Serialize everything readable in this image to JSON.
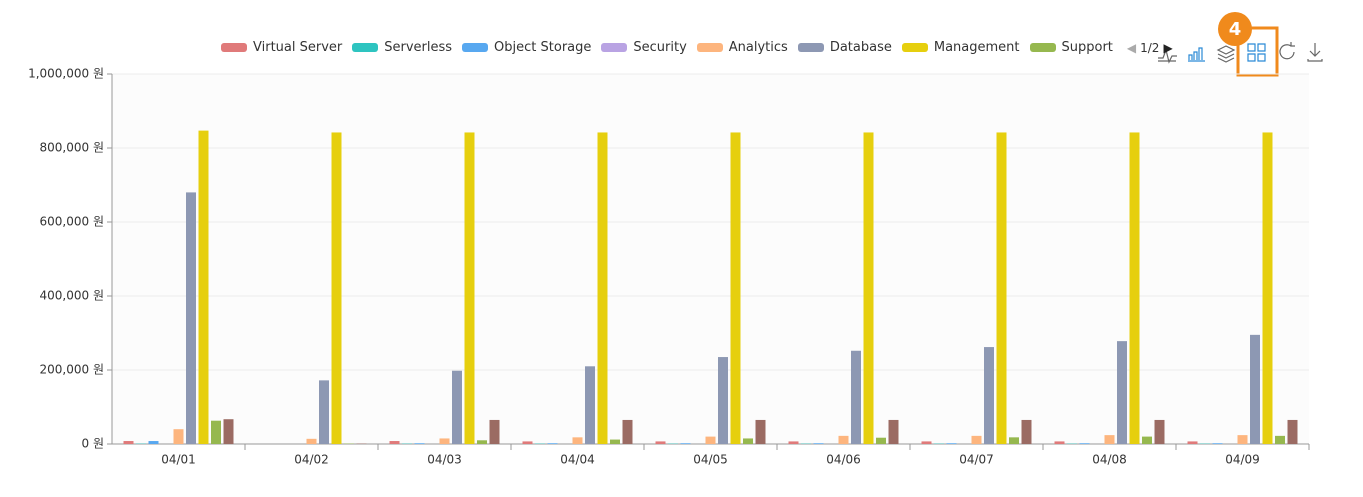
{
  "chart_data": {
    "type": "bar",
    "categories": [
      "04/01",
      "04/02",
      "04/03",
      "04/04",
      "04/05",
      "04/06",
      "04/07",
      "04/08",
      "04/09"
    ],
    "series": [
      {
        "name": "Virtual Server",
        "color": "#e07a7a",
        "values": [
          8000,
          0,
          8000,
          7000,
          7000,
          7000,
          7000,
          7000,
          7000
        ]
      },
      {
        "name": "Serverless",
        "color": "#2ec4c0",
        "values": [
          1000,
          0,
          1000,
          1000,
          1000,
          1000,
          1000,
          1000,
          1000
        ]
      },
      {
        "name": "Object Storage",
        "color": "#58a8f0",
        "values": [
          8000,
          0,
          2000,
          2000,
          2000,
          2000,
          2000,
          2000,
          2000
        ]
      },
      {
        "name": "Security",
        "color": "#b9a3e3",
        "values": [
          0,
          0,
          0,
          0,
          0,
          0,
          0,
          0,
          0
        ]
      },
      {
        "name": "Analytics",
        "color": "#fdb57e",
        "values": [
          40000,
          14000,
          15000,
          18000,
          20000,
          22000,
          22000,
          24000,
          24000
        ]
      },
      {
        "name": "Database",
        "color": "#8d98b3",
        "values": [
          680000,
          172000,
          198000,
          210000,
          235000,
          252000,
          262000,
          278000,
          295000
        ]
      },
      {
        "name": "Management",
        "color": "#e6cf0e",
        "values": [
          847000,
          842000,
          842000,
          842000,
          842000,
          842000,
          842000,
          842000,
          842000
        ]
      },
      {
        "name": "Support",
        "color": "#96b84f",
        "values": [
          63000,
          1000,
          10000,
          12000,
          15000,
          17000,
          18000,
          20000,
          22000
        ]
      },
      {
        "color": "#9b6b63",
        "values": [
          67000,
          1000,
          65000,
          65000,
          65000,
          65000,
          65000,
          65000,
          65000
        ]
      }
    ],
    "ylim": [
      0,
      1000000
    ],
    "yticks": [
      {
        "value": 0,
        "label": "0 원"
      },
      {
        "value": 200000,
        "label": "200,000 원"
      },
      {
        "value": 400000,
        "label": "400,000 원"
      },
      {
        "value": 600000,
        "label": "600,000 원"
      },
      {
        "value": 800000,
        "label": "800,000 원"
      },
      {
        "value": 1000000,
        "label": "1,000,000 원"
      }
    ],
    "grid": true,
    "legend_page": "1/2",
    "annotation": "4"
  }
}
